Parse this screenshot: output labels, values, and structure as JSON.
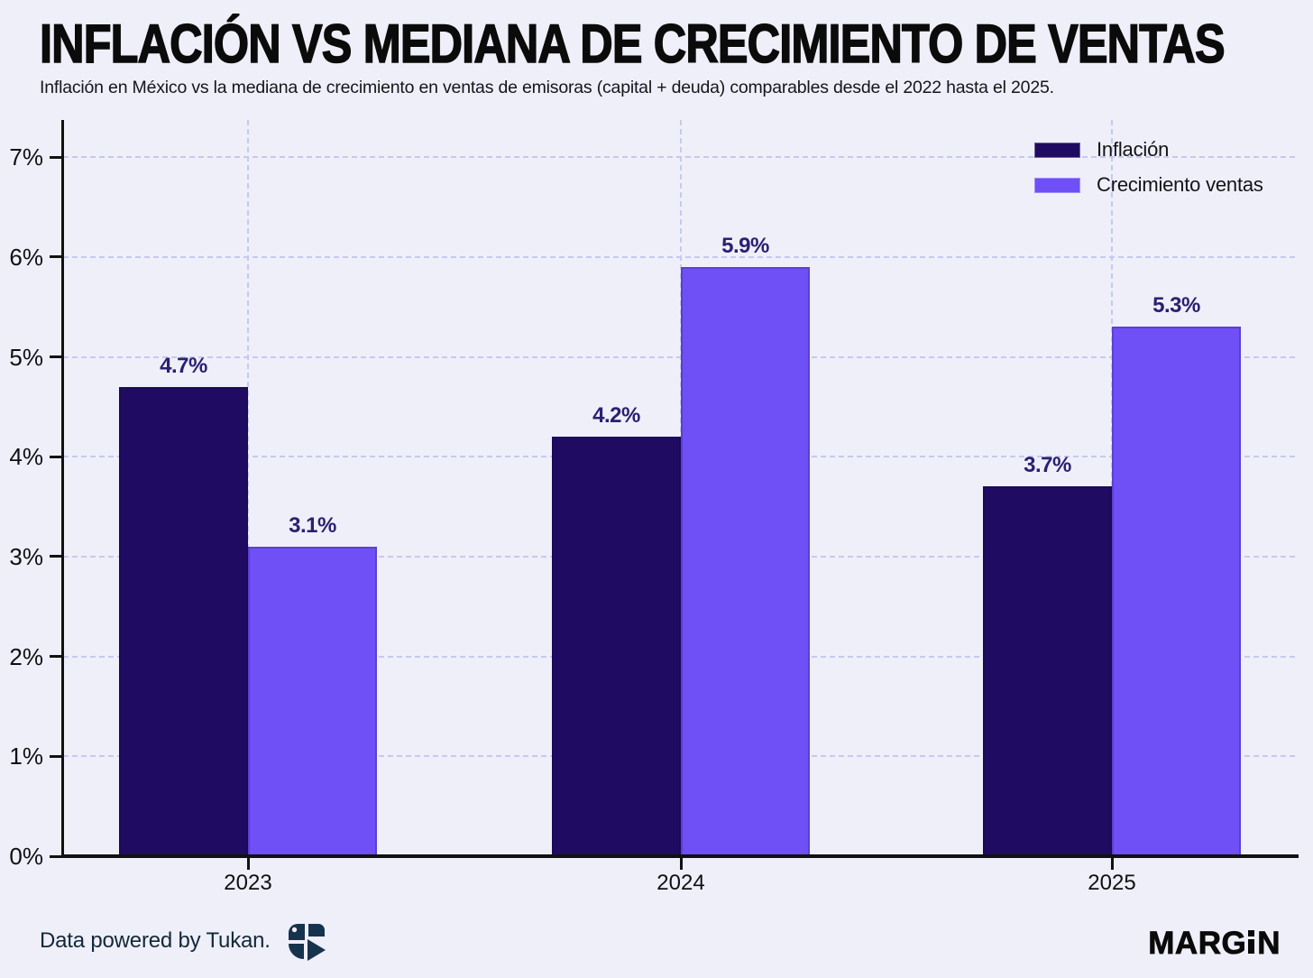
{
  "title": "INFLACIÓN VS MEDIANA DE CRECIMIENTO DE VENTAS",
  "subtitle": "Inflación en México vs la mediana de crecimiento en ventas de emisoras (capital + deuda) comparables desde el 2022 hasta el 2025.",
  "chart_data": {
    "type": "bar",
    "categories": [
      "2023",
      "2024",
      "2025"
    ],
    "series": [
      {
        "name": "Inflación",
        "color": "#200b63",
        "values": [
          4.7,
          4.2,
          3.7
        ]
      },
      {
        "name": "Crecimiento ventas",
        "color": "#6f4ff6",
        "values": [
          3.1,
          5.9,
          5.3
        ]
      }
    ],
    "value_suffix": "%",
    "value_labels": [
      [
        "4.7%",
        "4.2%",
        "3.7%"
      ],
      [
        "3.1%",
        "5.9%",
        "5.3%"
      ]
    ],
    "ylabel": "",
    "xlabel": "",
    "ylim": [
      0,
      7.4
    ],
    "yticks": [
      "0%",
      "1%",
      "2%",
      "3%",
      "4%",
      "5%",
      "6%",
      "7%"
    ],
    "grid": "dashed horizontal lines at each 1% and dashed vertical lines at category centers",
    "legend_position": "top-right"
  },
  "legend": {
    "items": [
      {
        "label": "Inflación",
        "color": "#200b63"
      },
      {
        "label": "Crecimiento ventas",
        "color": "#6f4ff6"
      }
    ]
  },
  "footer": {
    "credit": "Data powered by Tukan.",
    "brand": "MARGIN",
    "brand_pre": "MARG",
    "brand_post": "N"
  },
  "colors": {
    "background": "#efeff9",
    "gridline": "#c6c9ef",
    "axis": "#111111",
    "series_inflacion": "#200b63",
    "series_crecimiento": "#6f4ff6",
    "data_label": "#2a2072",
    "tukan_logo": "#16334d",
    "brand_text": "#0a0a0a"
  }
}
